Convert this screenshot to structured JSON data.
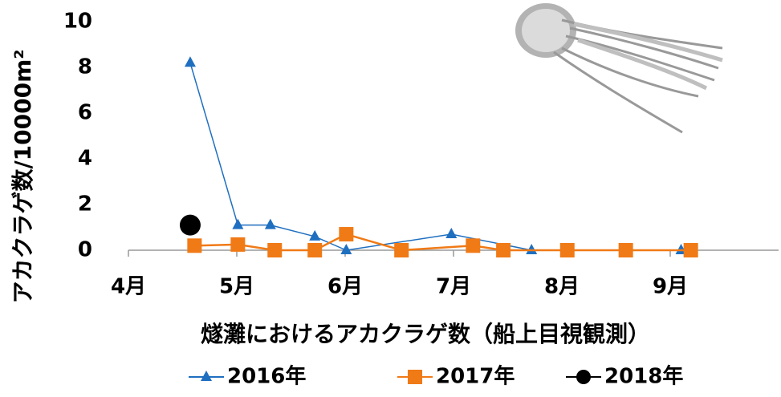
{
  "chart_data": {
    "type": "line",
    "ylabel": "アカクラゲ数/10000m²",
    "xlabel": "燧灘におけるアカクラゲ数（船上目視観測）",
    "xlim": [
      4,
      10
    ],
    "xticks": [
      {
        "value": 4,
        "label": "4月"
      },
      {
        "value": 5,
        "label": "5月"
      },
      {
        "value": 6,
        "label": "6月"
      },
      {
        "value": 7,
        "label": "7月"
      },
      {
        "value": 8,
        "label": "8月"
      },
      {
        "value": 9,
        "label": "9月"
      }
    ],
    "ylim": [
      0,
      10
    ],
    "yticks": [
      0,
      2,
      4,
      6,
      8,
      10
    ],
    "grid": false,
    "legend": "bottom",
    "series": [
      {
        "name": "2016年",
        "color": "#1f6fc0",
        "marker": "triangle",
        "x": [
          4.57,
          5.01,
          5.31,
          5.72,
          6.01,
          6.98,
          7.72,
          9.1
        ],
        "values": [
          8.2,
          1.1,
          1.1,
          0.6,
          0,
          0.7,
          0,
          0
        ]
      },
      {
        "name": "2017年",
        "color": "#f07a16",
        "marker": "square",
        "x": [
          4.61,
          5.01,
          5.35,
          5.72,
          6.01,
          6.52,
          7.18,
          7.46,
          8.05,
          8.59,
          9.19
        ],
        "values": [
          0.2,
          0.25,
          0,
          0,
          0.7,
          0,
          0.2,
          0,
          0,
          0,
          0
        ]
      },
      {
        "name": "2018年",
        "color": "#000000",
        "marker": "circle",
        "x": [
          4.57
        ],
        "values": [
          1.1
        ]
      }
    ]
  }
}
